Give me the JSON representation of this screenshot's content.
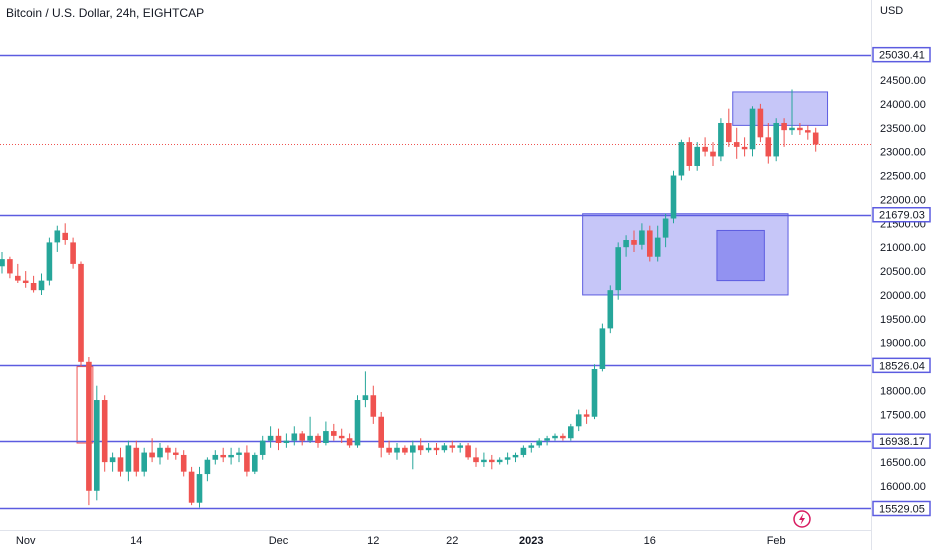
{
  "chart_data": {
    "type": "candlestick",
    "title": "Bitcoin / U.S. Dollar, 24h, EIGHTCAP",
    "currency": "USD",
    "ylim": [
      15550,
      25300
    ],
    "y_ticks": [
      24500,
      24000,
      23500,
      23000,
      22500,
      22000,
      21500,
      21000,
      20500,
      20000,
      19500,
      19000,
      18500,
      18000,
      17500,
      17000,
      16500,
      16000
    ],
    "x_labels": [
      {
        "label": "Nov",
        "index": 3,
        "bold": false
      },
      {
        "label": "14",
        "index": 17,
        "bold": false
      },
      {
        "label": "Dec",
        "index": 35,
        "bold": false
      },
      {
        "label": "12",
        "index": 47,
        "bold": false
      },
      {
        "label": "22",
        "index": 57,
        "bold": false
      },
      {
        "label": "2023",
        "index": 67,
        "bold": true
      },
      {
        "label": "16",
        "index": 82,
        "bold": false
      },
      {
        "label": "Feb",
        "index": 98,
        "bold": false
      }
    ],
    "horizontal_levels": [
      {
        "value": 25030.41,
        "label": "25030.41",
        "color": "#5c5ce0"
      },
      {
        "value": 21679.03,
        "label": "21679.03",
        "color": "#5c5ce0"
      },
      {
        "value": 18526.04,
        "label": "18526.04",
        "color": "#5c5ce0"
      },
      {
        "value": 16938.17,
        "label": "16938.17",
        "color": "#5c5ce0"
      },
      {
        "value": 15529.05,
        "label": "15529.05",
        "color": "#5c5ce0"
      }
    ],
    "colors": {
      "up": "#26a69a",
      "down": "#ef5350",
      "level": "#5c5ce0",
      "zone_fill": "#b3b3f5",
      "zone_fill_dark": "#8c8cf0",
      "zone_stroke": "#5c5ce0"
    },
    "zones": [
      {
        "i0": 73.5,
        "i1": 99.5,
        "y0": 20000,
        "y1": 21700,
        "style": "light"
      },
      {
        "i0": 90.5,
        "i1": 96.5,
        "y0": 20300,
        "y1": 21350,
        "style": "dark"
      },
      {
        "i0": 92.5,
        "i1": 104.5,
        "y0": 23550,
        "y1": 24250,
        "style": "light"
      },
      {
        "i0": 9.5,
        "i1": 11.5,
        "y0": 16900,
        "y1": 18500,
        "style": "outline"
      }
    ],
    "candles": [
      [
        20600,
        20900,
        20450,
        20750
      ],
      [
        20750,
        20800,
        20350,
        20450
      ],
      [
        20400,
        20650,
        20250,
        20300
      ],
      [
        20300,
        20500,
        20150,
        20250
      ],
      [
        20250,
        20400,
        20050,
        20100
      ],
      [
        20100,
        20450,
        20000,
        20300
      ],
      [
        20300,
        21200,
        20200,
        21100
      ],
      [
        21100,
        21450,
        20900,
        21350
      ],
      [
        21300,
        21500,
        21050,
        21150
      ],
      [
        21100,
        21200,
        20550,
        20650
      ],
      [
        20650,
        20700,
        18500,
        18600
      ],
      [
        18600,
        18700,
        15600,
        15900
      ],
      [
        15900,
        18100,
        15700,
        17800
      ],
      [
        17800,
        17900,
        16300,
        16500
      ],
      [
        16500,
        16700,
        16300,
        16600
      ],
      [
        16600,
        16800,
        16200,
        16300
      ],
      [
        16300,
        16950,
        16100,
        16850
      ],
      [
        16800,
        16950,
        16200,
        16300
      ],
      [
        16300,
        16800,
        16200,
        16700
      ],
      [
        16700,
        17000,
        16500,
        16600
      ],
      [
        16600,
        16900,
        16450,
        16800
      ],
      [
        16800,
        16850,
        16550,
        16700
      ],
      [
        16700,
        16800,
        16550,
        16650
      ],
      [
        16650,
        16750,
        16200,
        16300
      ],
      [
        16300,
        16400,
        15600,
        15650
      ],
      [
        15650,
        16400,
        15550,
        16250
      ],
      [
        16250,
        16600,
        16100,
        16550
      ],
      [
        16550,
        16750,
        16450,
        16650
      ],
      [
        16650,
        16800,
        16500,
        16600
      ],
      [
        16600,
        16800,
        16450,
        16650
      ],
      [
        16650,
        16800,
        16500,
        16700
      ],
      [
        16700,
        16850,
        16200,
        16300
      ],
      [
        16300,
        16700,
        16250,
        16650
      ],
      [
        16650,
        17050,
        16550,
        16950
      ],
      [
        16950,
        17250,
        16800,
        17050
      ],
      [
        17050,
        17200,
        16750,
        16900
      ],
      [
        16900,
        17100,
        16800,
        16950
      ],
      [
        16950,
        17250,
        16850,
        17100
      ],
      [
        17100,
        17150,
        16850,
        16950
      ],
      [
        16950,
        17450,
        16900,
        17050
      ],
      [
        17050,
        17100,
        16800,
        16900
      ],
      [
        16900,
        17350,
        16850,
        17150
      ],
      [
        17150,
        17300,
        16950,
        17050
      ],
      [
        17050,
        17200,
        16900,
        17000
      ],
      [
        17000,
        17100,
        16800,
        16850
      ],
      [
        16850,
        17900,
        16800,
        17800
      ],
      [
        17800,
        18400,
        17650,
        17900
      ],
      [
        17900,
        18100,
        17300,
        17450
      ],
      [
        17450,
        17550,
        16600,
        16800
      ],
      [
        16800,
        16950,
        16650,
        16700
      ],
      [
        16700,
        16900,
        16550,
        16800
      ],
      [
        16800,
        16850,
        16650,
        16700
      ],
      [
        16700,
        16950,
        16350,
        16850
      ],
      [
        16850,
        17000,
        16650,
        16750
      ],
      [
        16750,
        16900,
        16700,
        16800
      ],
      [
        16800,
        16900,
        16650,
        16750
      ],
      [
        16750,
        16900,
        16700,
        16850
      ],
      [
        16850,
        16950,
        16700,
        16800
      ],
      [
        16800,
        16900,
        16700,
        16850
      ],
      [
        16850,
        16900,
        16550,
        16600
      ],
      [
        16600,
        16800,
        16400,
        16500
      ],
      [
        16500,
        16700,
        16400,
        16550
      ],
      [
        16550,
        16650,
        16350,
        16500
      ],
      [
        16500,
        16600,
        16450,
        16550
      ],
      [
        16550,
        16700,
        16450,
        16600
      ],
      [
        16600,
        16700,
        16500,
        16650
      ],
      [
        16650,
        16850,
        16600,
        16800
      ],
      [
        16800,
        16900,
        16700,
        16850
      ],
      [
        16850,
        17000,
        16800,
        16950
      ],
      [
        16950,
        17050,
        16850,
        17000
      ],
      [
        17000,
        17100,
        16950,
        17050
      ],
      [
        17050,
        17100,
        16950,
        17000
      ],
      [
        17000,
        17300,
        16950,
        17250
      ],
      [
        17250,
        17600,
        17150,
        17500
      ],
      [
        17500,
        17600,
        17300,
        17450
      ],
      [
        17450,
        18550,
        17400,
        18450
      ],
      [
        18450,
        19400,
        18400,
        19300
      ],
      [
        19300,
        20200,
        19200,
        20100
      ],
      [
        20100,
        21100,
        19900,
        21000
      ],
      [
        21000,
        21250,
        20800,
        21150
      ],
      [
        21150,
        21350,
        20900,
        21050
      ],
      [
        21050,
        21500,
        20950,
        21350
      ],
      [
        21350,
        21450,
        20700,
        20800
      ],
      [
        20800,
        21450,
        20700,
        21200
      ],
      [
        21200,
        21700,
        21000,
        21600
      ],
      [
        21600,
        22600,
        21500,
        22500
      ],
      [
        22500,
        23250,
        22400,
        23200
      ],
      [
        23200,
        23300,
        22600,
        22700
      ],
      [
        22700,
        23200,
        22600,
        23100
      ],
      [
        23100,
        23300,
        22900,
        23000
      ],
      [
        23000,
        23200,
        22700,
        22900
      ],
      [
        22900,
        23700,
        22800,
        23600
      ],
      [
        23600,
        23900,
        23100,
        23200
      ],
      [
        23200,
        23500,
        22850,
        23100
      ],
      [
        23100,
        23300,
        22900,
        23050
      ],
      [
        23050,
        23950,
        22900,
        23900
      ],
      [
        23900,
        24000,
        23200,
        23300
      ],
      [
        23300,
        23600,
        22750,
        22900
      ],
      [
        22900,
        23700,
        22800,
        23600
      ],
      [
        23600,
        23700,
        23100,
        23450
      ],
      [
        23450,
        24300,
        23350,
        23500
      ],
      [
        23500,
        23600,
        23350,
        23450
      ],
      [
        23450,
        23550,
        23250,
        23400
      ],
      [
        23400,
        23500,
        23000,
        23150
      ]
    ]
  },
  "ui": {
    "currency_label": "USD"
  }
}
